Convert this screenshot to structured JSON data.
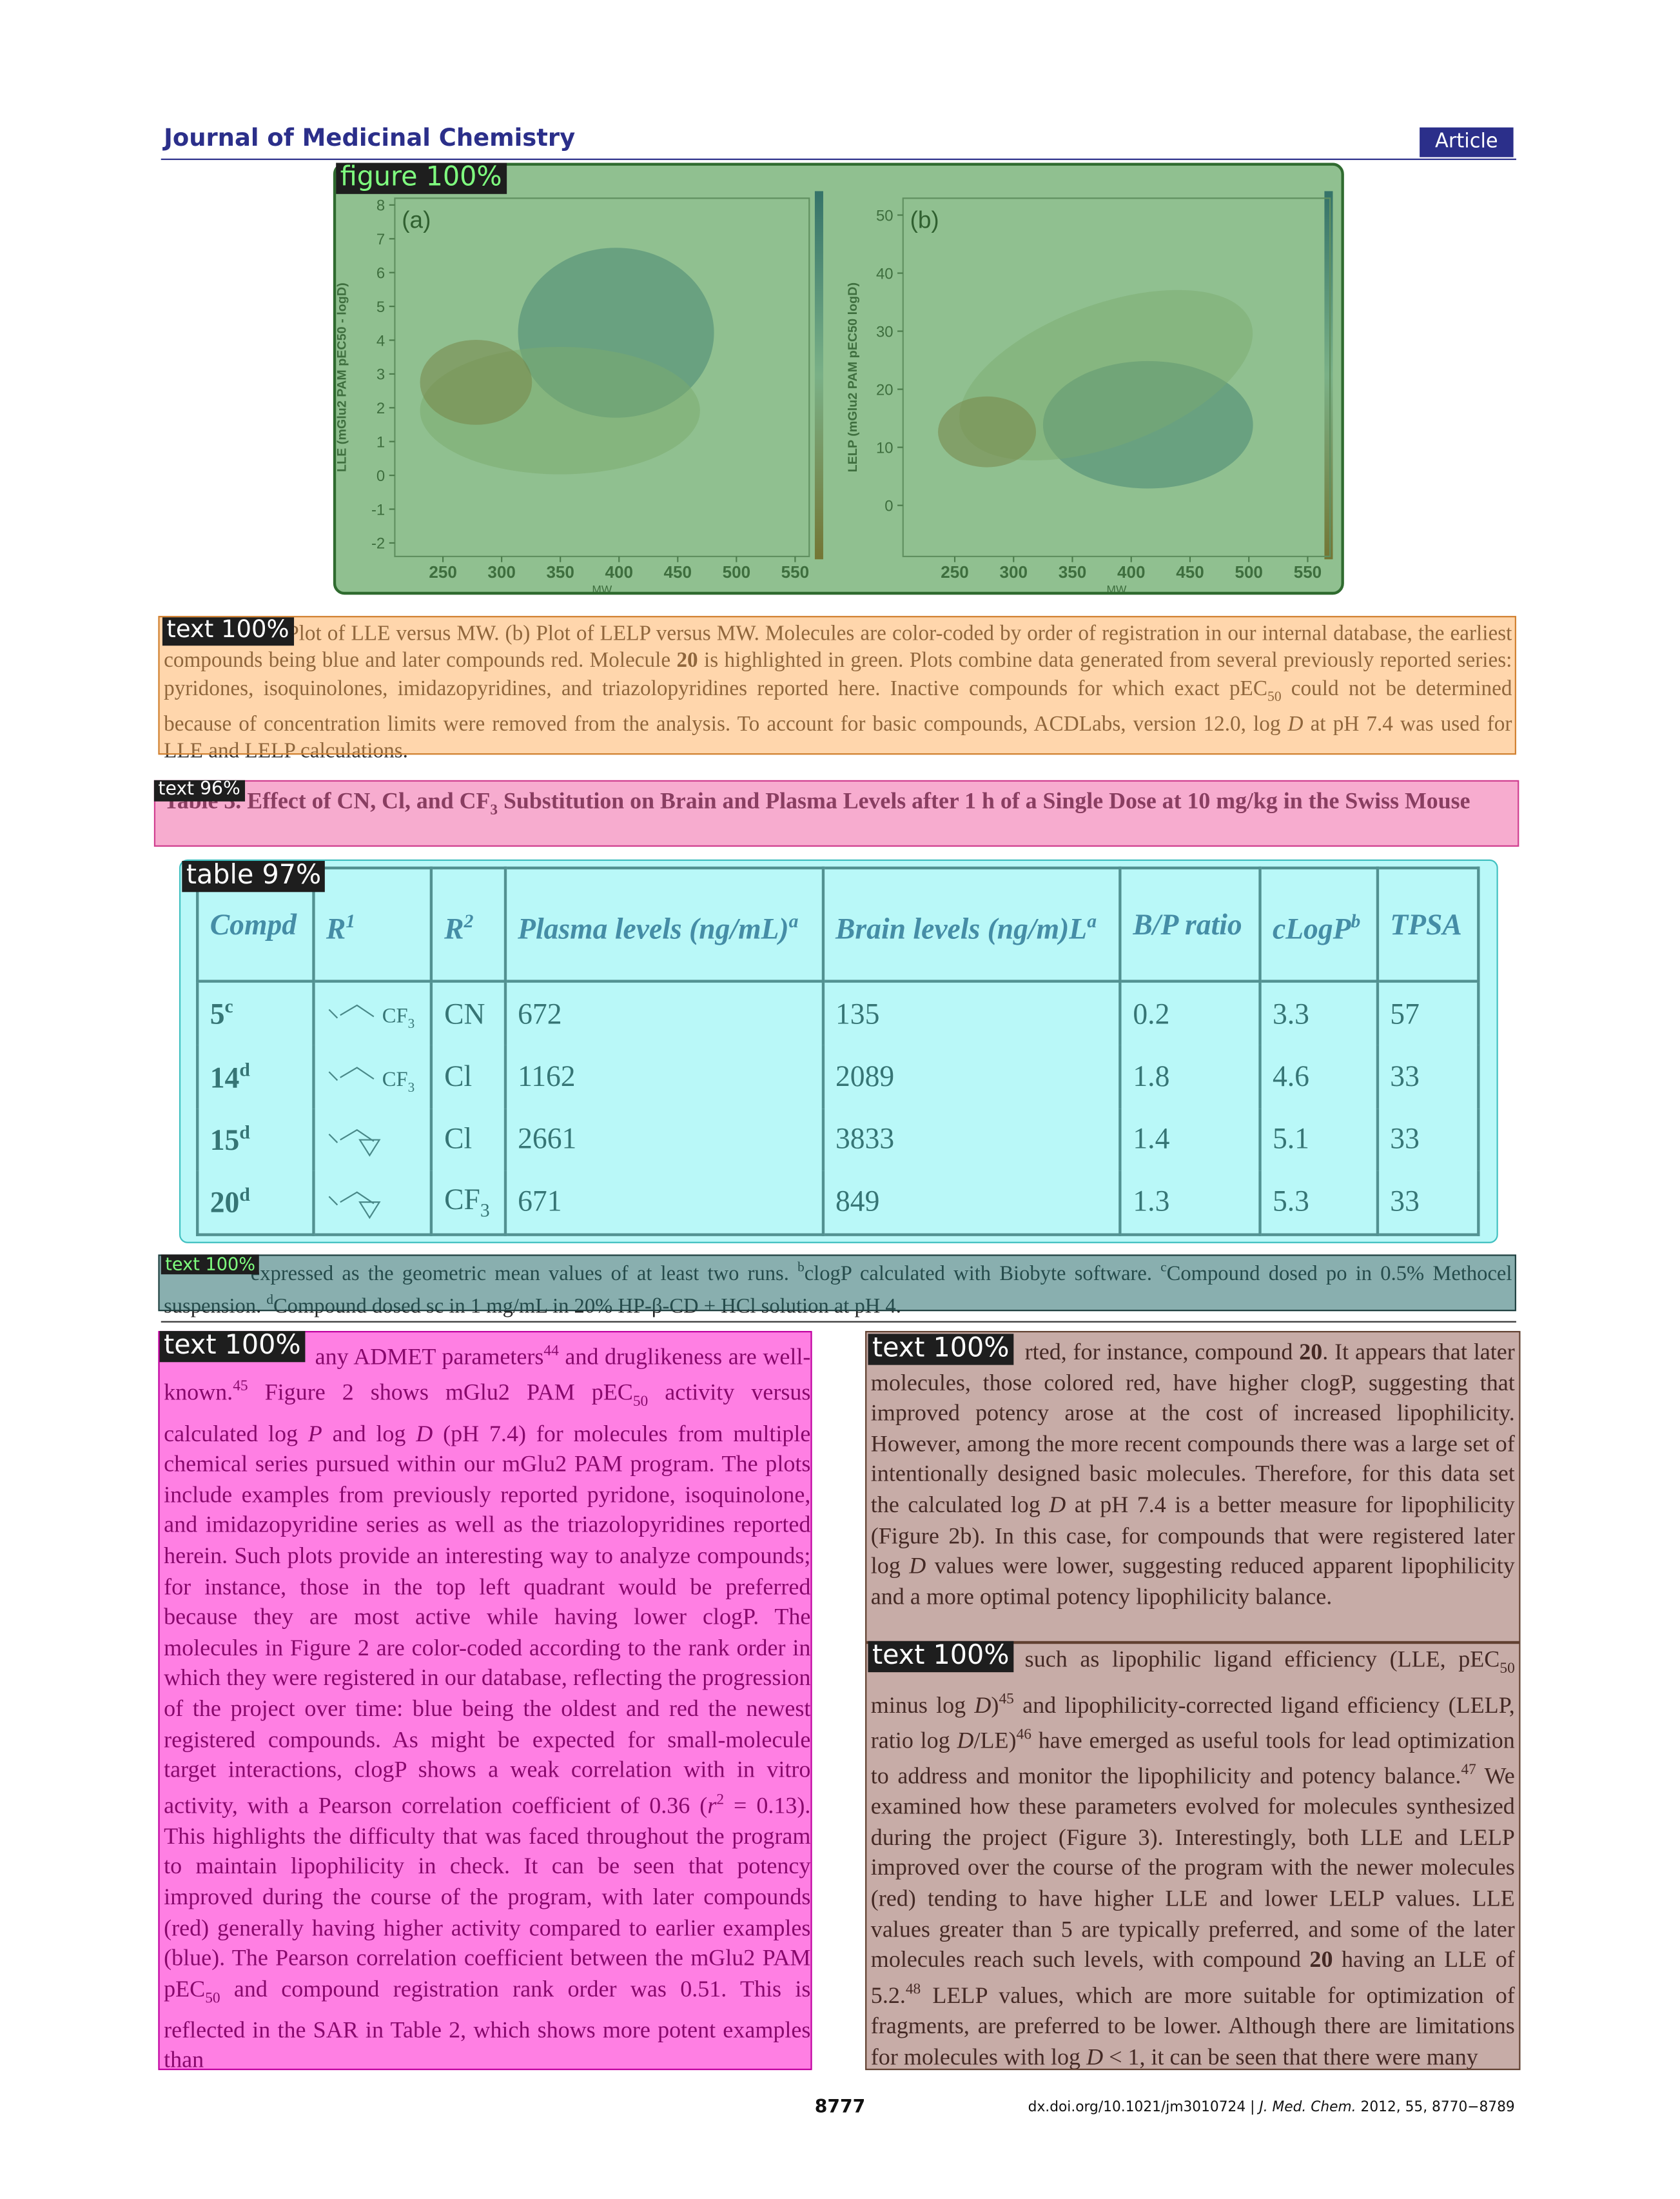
{
  "header": {
    "journal": "Journal of Medicinal Chemistry",
    "section": "Article"
  },
  "figure": {
    "panels": [
      {
        "label": "(a)",
        "ylabel": "LLE (mGlu2 PAM pEC50 - logD)",
        "xlabel": "MW",
        "xlim": [
          209,
          562
        ],
        "ylim": [
          -2.4,
          8.2
        ],
        "xticks": [
          250,
          300,
          350,
          400,
          450,
          500,
          550
        ],
        "yticks": [
          -2,
          -1,
          0,
          1,
          2,
          3,
          4,
          5,
          6,
          7,
          8
        ]
      },
      {
        "label": "(b)",
        "ylabel": "LELP (mGlu2 PAM pEC50 logD)",
        "xlabel": "MW",
        "xlim": [
          206,
          569
        ],
        "ylim": [
          -8.8,
          52.9
        ],
        "xticks": [
          250,
          300,
          350,
          400,
          450,
          500,
          550
        ],
        "yticks": [
          0,
          10,
          20,
          30,
          40,
          50
        ]
      }
    ]
  },
  "caption": {
    "runs": [
      "Plot of LLE versus MW. (b) Plot of LELP versus MW. Molecules are color-coded by order of registration in our internal database, the earliest compounds being blue and later compounds red. Molecule ",
      {
        "b": "20"
      },
      " is highlighted in green. Plots combine data generated from several previously reported series: pyridones, isoquinolones, imidazopyridines, and triazolopyridines reported here. Inactive compounds for which exact pEC",
      {
        "sub": "50"
      },
      " could not be determined because of concentration limits were removed from the analysis. To account for basic compounds, ACDLabs, version 12.0, log ",
      {
        "i": "D"
      },
      " at pH 7.4 was used for LLE and LELP calculations."
    ]
  },
  "table": {
    "title": [
      "Table 3. Effect of CN, Cl, and CF",
      {
        "sub": "3"
      },
      " Substitution on Brain and Plasma Levels after 1 h of a Single Dose at 10 mg/kg in the Swiss Mouse"
    ],
    "header": [
      [
        "Compd"
      ],
      [
        "R",
        {
          "sup": "1"
        }
      ],
      [
        "R",
        {
          "sup": "2"
        }
      ],
      [
        "Plasma levels (ng/mL)",
        {
          "sup": "a"
        }
      ],
      [
        "Brain levels (ng/m)L",
        {
          "sup": "a"
        }
      ],
      [
        "B/P ratio"
      ],
      [
        "cLogP",
        {
          "sup": "b"
        }
      ],
      [
        "TPSA"
      ]
    ],
    "rows": [
      [
        [
          "5",
          {
            "sup": "c"
          }
        ],
        [
          "CF",
          {
            "sub": "3"
          }
        ],
        [
          "CN"
        ],
        672,
        135,
        0.2,
        3.3,
        57
      ],
      [
        [
          "14",
          {
            "sup": "d"
          }
        ],
        [
          "CF",
          {
            "sub": "3"
          }
        ],
        [
          "Cl"
        ],
        1162,
        2089,
        1.8,
        4.6,
        33
      ],
      [
        [
          "15",
          {
            "sup": "d"
          }
        ],
        null,
        [
          "Cl"
        ],
        2661,
        3833,
        1.4,
        5.1,
        33
      ],
      [
        [
          "20",
          {
            "sup": "d"
          }
        ],
        null,
        [
          "CF",
          {
            "sub": "3"
          }
        ],
        671,
        849,
        1.3,
        5.3,
        33
      ]
    ],
    "footnote": [
      "expressed as the geometric mean values of at least two runs. ",
      {
        "sup": "b"
      },
      "clogP calculated with Biobyte software. ",
      {
        "sup": "c"
      },
      "Compound dosed po in 0.5% Methocel suspension. ",
      {
        "sup": "d"
      },
      "Compound dosed sc in 1 mg/mL in 20% HP-β-CD + HCl solution at pH 4."
    ]
  },
  "body": {
    "left": [
      "any ADMET parameters",
      {
        "sup": "44"
      },
      " and druglikeness are well-known.",
      {
        "sup": "45"
      },
      " Figure 2 shows mGlu2 PAM pEC",
      {
        "sub": "50"
      },
      " activity versus calculated log ",
      {
        "i": "P"
      },
      " and log ",
      {
        "i": "D"
      },
      " (pH 7.4) for molecules from multiple chemical series pursued within our mGlu2 PAM program. The plots include examples from previously reported pyridone, isoquinolone, and imidazopyridine series as well as the triazolopyridines reported herein. Such plots provide an interesting way to analyze compounds; for instance, those in the top left quadrant would be preferred because they are most active while having lower clogP. The molecules in Figure 2 are color-coded according to the rank order in which they were registered in our database, reflecting the progression of the project over time: blue being the oldest and red the newest registered compounds. As might be expected for small-molecule target interactions, clogP shows a weak correlation with in vitro activity, with a Pearson correlation coefficient of 0.36 (",
      {
        "i": "r"
      },
      {
        "sup": "2"
      },
      " = 0.13). This highlights the difficulty that was faced throughout the program to maintain lipophilicity in check. It can be seen that potency improved during the course of the program, with later compounds (red) generally having higher activity compared to earlier examples (blue). The Pearson correlation coefficient between the mGlu2 PAM pEC",
      {
        "sub": "50"
      },
      " and compound registration rank order was 0.51. This is reflected in the SAR in Table 2, which shows more potent examples than"
    ],
    "right1": [
      "rted, for instance, compound ",
      {
        "b": "20"
      },
      ". It appears that later molecules, those colored red, have higher clogP, suggesting that improved potency arose at the cost of increased lipophilicity. However, among the more recent compounds there was a large set of intentionally designed basic molecules. Therefore, for this data set the calculated log ",
      {
        "i": "D"
      },
      " at pH 7.4 is a better measure for lipophilicity (Figure 2b). In this case, for compounds that were registered later log ",
      {
        "i": "D"
      },
      " values were lower, suggesting reduced apparent lipophilicity and a more optimal potency lipophilicity balance."
    ],
    "right2": [
      "such as lipophilic ligand efficiency (LLE, pEC",
      {
        "sub": "50"
      },
      " minus log ",
      {
        "i": "D"
      },
      ")",
      {
        "sup": "45"
      },
      " and lipophilicity-corrected ligand efficiency (LELP, ratio log ",
      {
        "i": "D"
      },
      "/LE)",
      {
        "sup": "46"
      },
      " have emerged as useful tools for lead optimization to address and monitor the lipophilicity and potency balance.",
      {
        "sup": "47"
      },
      " We examined how these parameters evolved for molecules synthesized during the project (Figure 3). Interestingly, both LLE and LELP improved over the course of the program with the newer molecules (red) tending to have higher LLE and lower LELP values. LLE values greater than 5 are typically preferred, and some of the later molecules reach such levels, with compound ",
      {
        "b": "20"
      },
      " having an LLE of 5.2.",
      {
        "sup": "48"
      },
      " LELP values, which are more suitable for optimization of fragments, are preferred to be lower. Although there are limitations for molecules with log ",
      {
        "i": "D"
      },
      " < 1, it can be seen that there were many"
    ]
  },
  "footer": {
    "page": "8777",
    "citation": [
      "dx.doi.org/10.1021/jm3010724 | ",
      {
        "i": "J. Med. Chem."
      },
      " 2012, 55, 8770−8789"
    ]
  },
  "overlays": [
    {
      "label": "figure 100%"
    },
    {
      "label": "text 100%"
    },
    {
      "label": "text 96%"
    },
    {
      "label": "table 97%"
    },
    {
      "label": "text 100%"
    },
    {
      "label": "text 100%"
    },
    {
      "label": "text 100%"
    },
    {
      "label": "text 100%"
    }
  ]
}
